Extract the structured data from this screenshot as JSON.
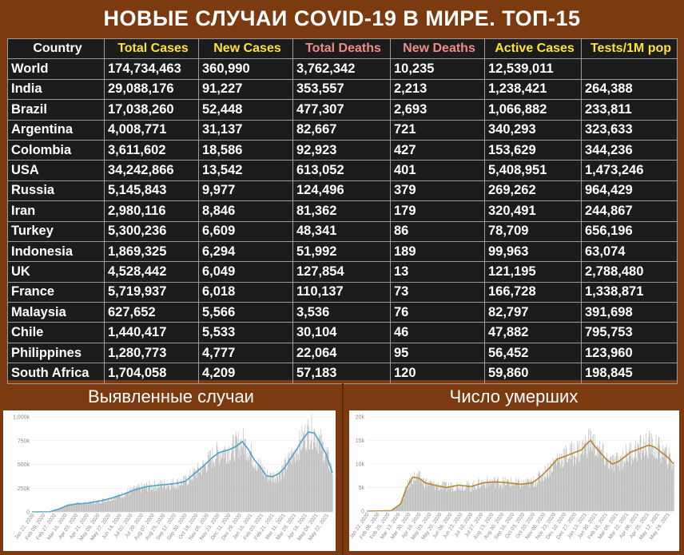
{
  "title": "НОВЫЕ СЛУЧАИ COVID-19 В МИРЕ. ТОП-15",
  "table": {
    "headers": [
      "Country",
      "Total Cases",
      "New Cases",
      "Total Deaths",
      "New Deaths",
      "Active Cases",
      "Tests/1M pop"
    ],
    "header_colors": [
      "#ffffff",
      "#ffe233",
      "#ffe233",
      "#f08b8b",
      "#f08b8b",
      "#ffe233",
      "#ffe233"
    ],
    "rows": [
      [
        "World",
        "174,734,463",
        "360,990",
        "3,762,342",
        "10,235",
        "12,539,011",
        ""
      ],
      [
        "India",
        "29,088,176",
        "91,227",
        "353,557",
        "2,213",
        "1,238,421",
        "264,388"
      ],
      [
        "Brazil",
        "17,038,260",
        "52,448",
        "477,307",
        "2,693",
        "1,066,882",
        "233,811"
      ],
      [
        "Argentina",
        "4,008,771",
        "31,137",
        "82,667",
        "721",
        "340,293",
        "323,633"
      ],
      [
        "Colombia",
        "3,611,602",
        "18,586",
        "92,923",
        "427",
        "153,629",
        "344,236"
      ],
      [
        "USA",
        "34,242,866",
        "13,542",
        "613,052",
        "401",
        "5,408,951",
        "1,473,246"
      ],
      [
        "Russia",
        "5,145,843",
        "9,977",
        "124,496",
        "379",
        "269,262",
        "964,429"
      ],
      [
        "Iran",
        "2,980,116",
        "8,846",
        "81,362",
        "179",
        "320,491",
        "244,867"
      ],
      [
        "Turkey",
        "5,300,236",
        "6,609",
        "48,341",
        "86",
        "78,709",
        "656,196"
      ],
      [
        "Indonesia",
        "1,869,325",
        "6,294",
        "51,992",
        "189",
        "99,963",
        "63,074"
      ],
      [
        "UK",
        "4,528,442",
        "6,049",
        "127,854",
        "13",
        "121,195",
        "2,788,480"
      ],
      [
        "France",
        "5,719,937",
        "6,018",
        "110,137",
        "73",
        "166,728",
        "1,338,871"
      ],
      [
        "Malaysia",
        "627,652",
        "5,566",
        "3,536",
        "76",
        "82,797",
        "391,698"
      ],
      [
        "Chile",
        "1,440,417",
        "5,533",
        "30,104",
        "46",
        "47,882",
        "795,753"
      ],
      [
        "Philippines",
        "1,280,773",
        "4,777",
        "22,064",
        "95",
        "56,452",
        "123,960"
      ],
      [
        "South Africa",
        "1,704,058",
        "4,209",
        "57,183",
        "120",
        "59,860",
        "198,845"
      ]
    ]
  },
  "sections": {
    "cases_label": "Выявленные случаи",
    "deaths_label": "Число умерших"
  },
  "colors": {
    "background": "#7b3a10",
    "cases_line": "#4aa3c8",
    "deaths_line": "#b8862a",
    "bars": "#b5b5b5"
  },
  "chart_data": [
    {
      "type": "bar",
      "title": "",
      "ylim": [
        0,
        1000000
      ],
      "yticks": [
        0,
        250000,
        500000,
        750000,
        1000000
      ],
      "ytick_labels": [
        "0",
        "250k",
        "500k",
        "750k",
        "1,000k"
      ],
      "xtick_labels": [
        "Jan 22, 2020",
        "Feb 09, 2020",
        "Feb 27, 2020",
        "Mar 16, 2020",
        "Apr 03, 2020",
        "Apr 21, 2020",
        "May 09, 2020",
        "May 27, 2020",
        "Jun 14, 2020",
        "Jul 02, 2020",
        "Jul 20, 2020",
        "Aug 07, 2020",
        "Aug 25, 2020",
        "Sep 12, 2020",
        "Sep 30, 2020",
        "Oct 18, 2020",
        "Nov 05, 2020",
        "Nov 23, 2020",
        "Dec 11, 2020",
        "Dec 29, 2020",
        "Jan 16, 2021",
        "Feb 03, 2021",
        "Feb 21, 2021",
        "Mar 11, 2021",
        "Mar 29, 2021",
        "Apr 16, 2021",
        "May 04, 2021",
        "May 22, 2021"
      ],
      "series": [
        {
          "kind": "trend",
          "x_index": [
            0,
            30,
            45,
            60,
            75,
            90,
            110,
            130,
            150,
            170,
            190,
            210,
            225,
            240,
            255,
            270,
            285,
            300,
            310,
            320,
            330,
            340,
            350,
            360,
            370,
            380,
            390,
            400,
            410,
            420,
            430,
            440,
            450,
            460,
            470,
            480,
            490,
            500
          ],
          "values": [
            0,
            2000,
            30000,
            70000,
            85000,
            90000,
            110000,
            140000,
            180000,
            230000,
            265000,
            280000,
            290000,
            300000,
            320000,
            400000,
            480000,
            570000,
            620000,
            640000,
            660000,
            690000,
            740000,
            660000,
            550000,
            470000,
            380000,
            370000,
            400000,
            460000,
            560000,
            650000,
            760000,
            840000,
            830000,
            720000,
            600000,
            410000
          ]
        }
      ]
    },
    {
      "type": "bar",
      "title": "",
      "ylim": [
        0,
        20000
      ],
      "yticks": [
        0,
        5000,
        10000,
        15000,
        20000
      ],
      "ytick_labels": [
        "0",
        "5k",
        "10k",
        "15k",
        "20k"
      ],
      "xtick_labels": [
        "Jan 22, 2020",
        "Feb 08, 2020",
        "Feb 25, 2020",
        "Mar 13, 2020",
        "Mar 30, 2020",
        "Apr 16, 2020",
        "May 03, 2020",
        "May 20, 2020",
        "Jun 06, 2020",
        "Jun 23, 2020",
        "Jul 10, 2020",
        "Jul 27, 2020",
        "Aug 13, 2020",
        "Aug 30, 2020",
        "Sep 16, 2020",
        "Oct 03, 2020",
        "Oct 20, 2020",
        "Nov 06, 2020",
        "Nov 23, 2020",
        "Dec 10, 2020",
        "Dec 27, 2020",
        "Jan 13, 2021",
        "Jan 30, 2021",
        "Feb 16, 2021",
        "Mar 05, 2021",
        "Mar 22, 2021",
        "Apr 08, 2021",
        "Apr 25, 2021",
        "May 12, 2021",
        "May 29, 2021"
      ],
      "series": [
        {
          "kind": "trend",
          "x_index": [
            0,
            40,
            55,
            65,
            75,
            85,
            95,
            110,
            130,
            150,
            170,
            190,
            210,
            230,
            250,
            270,
            285,
            300,
            310,
            320,
            330,
            340,
            350,
            360,
            365,
            370,
            380,
            390,
            400,
            410,
            420,
            430,
            440,
            450,
            460,
            470,
            480,
            490,
            500
          ],
          "values": [
            0,
            100,
            1500,
            5000,
            7200,
            7000,
            6000,
            5500,
            5000,
            5500,
            5200,
            6000,
            6200,
            6000,
            5700,
            6000,
            7500,
            9500,
            11000,
            11500,
            12000,
            12500,
            13000,
            14500,
            15000,
            14000,
            12500,
            11000,
            10000,
            10500,
            11500,
            12500,
            13000,
            13500,
            14000,
            13500,
            12500,
            11500,
            10000
          ]
        }
      ]
    }
  ]
}
